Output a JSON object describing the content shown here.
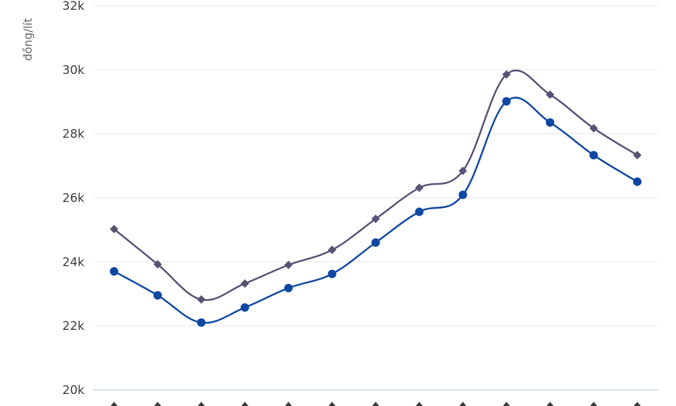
{
  "chart_data": {
    "type": "line",
    "title": "",
    "xlabel": "",
    "ylabel": "đồng/lít",
    "ylim": [
      20000,
      32000
    ],
    "yticks": [
      20000,
      22000,
      24000,
      26000,
      28000,
      30000,
      32000
    ],
    "ytick_labels": [
      "20k",
      "22k",
      "24k",
      "26k",
      "28k",
      "30k",
      "32k"
    ],
    "grid": true,
    "legend": "none",
    "x": [
      1,
      2,
      3,
      4,
      5,
      6,
      7,
      8,
      9,
      10,
      11,
      12,
      13
    ],
    "series": [
      {
        "color": "#5a5175",
        "marker": "diamond",
        "values": [
          25020,
          23920,
          22820,
          23320,
          23900,
          24370,
          25340,
          26310,
          26840,
          29850,
          29220,
          28170,
          27330
        ]
      },
      {
        "color": "#0f47a1",
        "marker": "circle",
        "values": [
          23700,
          22950,
          22100,
          22570,
          23180,
          23620,
          24600,
          25560,
          26090,
          29010,
          28350,
          27330,
          26500
        ]
      }
    ]
  }
}
